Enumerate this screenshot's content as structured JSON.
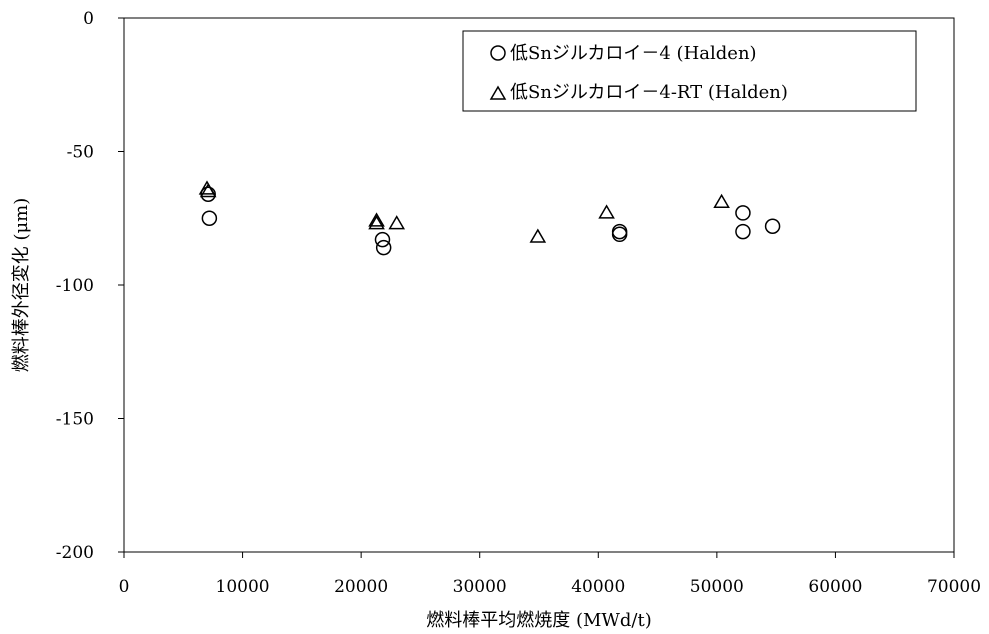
{
  "chart_data": {
    "type": "scatter",
    "title": "",
    "xlabel": "燃料棒平均燃焼度 (MWd/t)",
    "ylabel": "燃料棒外径変化 (μm)",
    "xlim": [
      0,
      70000
    ],
    "ylim": [
      -200,
      0
    ],
    "x_ticks": [
      0,
      10000,
      20000,
      30000,
      40000,
      50000,
      60000,
      70000
    ],
    "y_ticks": [
      0,
      -50,
      -100,
      -150,
      -200
    ],
    "grid": false,
    "legend_position": "top-right",
    "series": [
      {
        "name": "低Snジルカロイ－4 (Halden)",
        "marker": "circle",
        "color": "#000000",
        "points": [
          [
            7100,
            -66
          ],
          [
            7200,
            -75
          ],
          [
            21800,
            -83
          ],
          [
            21900,
            -86
          ],
          [
            41800,
            -80
          ],
          [
            41800,
            -81
          ],
          [
            52200,
            -73
          ],
          [
            52200,
            -80
          ],
          [
            54700,
            -78
          ]
        ]
      },
      {
        "name": "低Snジルカロイ－4-RT (Halden)",
        "marker": "triangle",
        "color": "#000000",
        "points": [
          [
            7000,
            -64
          ],
          [
            7100,
            -65
          ],
          [
            21300,
            -76
          ],
          [
            21300,
            -77
          ],
          [
            23000,
            -77
          ],
          [
            34900,
            -82
          ],
          [
            40700,
            -73
          ],
          [
            50400,
            -69
          ]
        ]
      }
    ]
  }
}
